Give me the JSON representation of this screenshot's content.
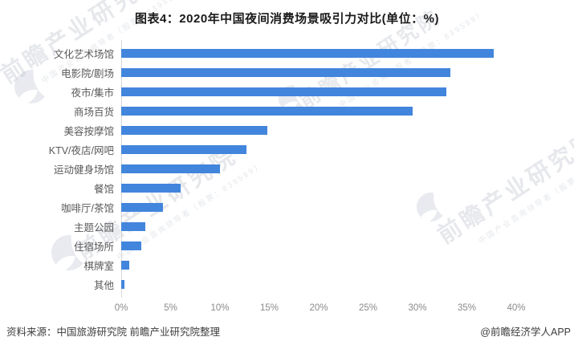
{
  "title": "图表4：2020年中国夜间消费场景吸引力对比(单位：%)",
  "chart_data": {
    "type": "bar",
    "orientation": "horizontal",
    "title": "图表4：2020年中国夜间消费场景吸引力对比(单位：%)",
    "unit": "%",
    "categories": [
      "文化艺术场馆",
      "电影院/剧场",
      "夜市/集市",
      "商场百货",
      "美容按摩馆",
      "KTV/夜店/网吧",
      "运动健身场馆",
      "餐馆",
      "咖啡厅/茶馆",
      "主题公园",
      "住宿场所",
      "棋牌室",
      "其他"
    ],
    "values": [
      37.7,
      33.3,
      32.9,
      29.5,
      14.8,
      12.7,
      10.0,
      6.0,
      4.2,
      2.4,
      2.0,
      0.8,
      0.3
    ],
    "xlim": [
      0,
      40
    ],
    "x_tick_values": [
      0,
      5,
      10,
      15,
      20,
      25,
      30,
      35,
      40
    ],
    "x_tick_labels": [
      "0%",
      "5%",
      "10%",
      "15%",
      "20%",
      "25%",
      "30%",
      "35%",
      "40%"
    ],
    "bar_color": "#4285dc",
    "grid": false,
    "legend": false
  },
  "footer": {
    "source": "资料来源：中国旅游研究院 前瞻产业研究院整理",
    "credit": "@前瞻经济学人APP"
  },
  "watermark": {
    "big_text": "前瞻产业研究院",
    "small_text": "中国产业咨询领导者（股票：839599）"
  }
}
